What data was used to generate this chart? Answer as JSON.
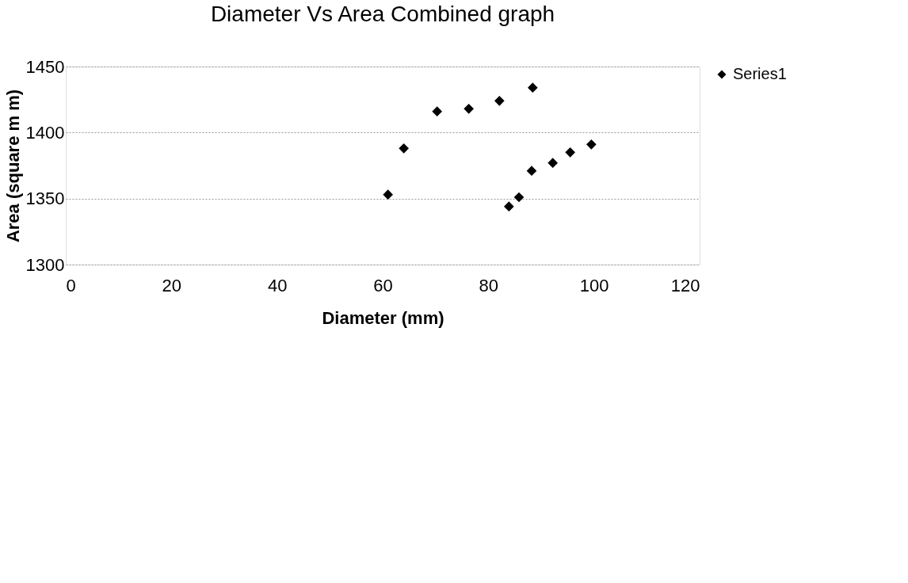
{
  "chart_data": {
    "type": "scatter",
    "title": "Diameter Vs Area Combined graph",
    "xlabel": "Diameter (mm)",
    "ylabel": "Area (square m m)",
    "series": [
      {
        "name": "Series1",
        "color": "#000000",
        "x": [
          61,
          64,
          70.3,
          76.3,
          82.1,
          88.4,
          83.9,
          85.8,
          88.2,
          92.2,
          95.5,
          99.5
        ],
        "values": [
          1353,
          1388,
          1416,
          1418,
          1424,
          1434,
          1344,
          1351,
          1371,
          1377,
          1385,
          1391
        ]
      }
    ],
    "xlim": [
      0,
      120
    ],
    "xticks": [
      0,
      20,
      40,
      60,
      80,
      100,
      120
    ],
    "ylim": [
      1300,
      1450
    ],
    "yticks": [
      1300,
      1350,
      1400,
      1450
    ],
    "grid": "y",
    "legend": "right",
    "marker": "diamond"
  }
}
